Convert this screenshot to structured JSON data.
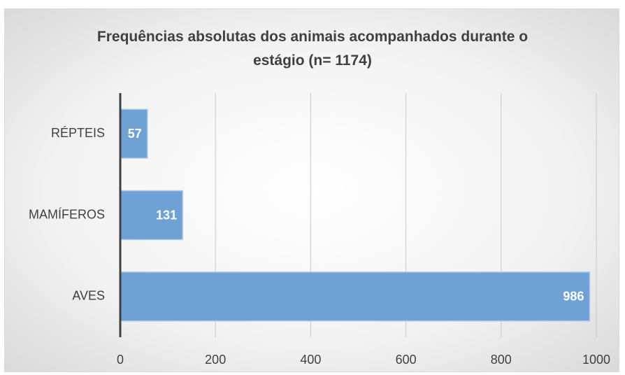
{
  "chart_data": {
    "type": "bar",
    "orientation": "horizontal",
    "title": "Frequências absolutas dos animais acompanhados durante o estágio  (n= 1174)",
    "categories": [
      "RÉPTEIS",
      "MAMÍFEROS",
      "AVES"
    ],
    "values": [
      57,
      131,
      986
    ],
    "color": "#6fa1d5",
    "xlim": [
      0,
      1000
    ],
    "xticks": [
      0,
      200,
      400,
      600,
      800,
      1000
    ],
    "grid": true
  }
}
